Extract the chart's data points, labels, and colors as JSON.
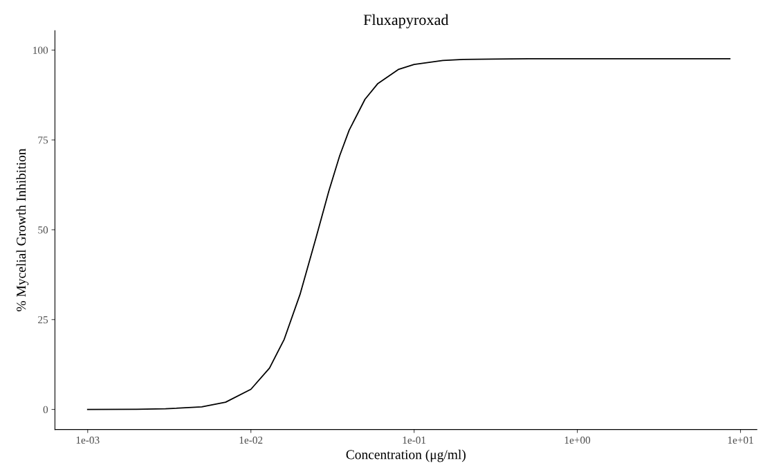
{
  "chart_data": {
    "type": "line",
    "title": "Fluxapyroxad",
    "xlabel": "Concentration (μg/ml)",
    "ylabel": "% Mycelial Growth Inhibition",
    "log": "x",
    "grid": false,
    "legend": false,
    "marker": "none",
    "line_style": "solid",
    "x": [
      0.001,
      0.002,
      0.003,
      0.005,
      0.007,
      0.01,
      0.013,
      0.016,
      0.02,
      0.025,
      0.03,
      0.035,
      0.04,
      0.05,
      0.06,
      0.08,
      0.1,
      0.15,
      0.2,
      0.3,
      0.5,
      1,
      8.6
    ],
    "series": [
      {
        "color": "#000000",
        "values": [
          0,
          0.05,
          0.16,
          0.7,
          2.0,
          5.6,
          11.5,
          19.5,
          32,
          47.6,
          60.7,
          70.6,
          77.7,
          86.3,
          90.7,
          94.6,
          96.0,
          97.1,
          97.4,
          97.5,
          97.6,
          97.6,
          97.6
        ]
      }
    ],
    "xlim": [
      0.00063,
      12.6
    ],
    "ylim": [
      -5.6,
      105.4
    ],
    "xticks": [
      {
        "value": 0.001,
        "label": "1e-03"
      },
      {
        "value": 0.01,
        "label": "1e-02"
      },
      {
        "value": 0.1,
        "label": "1e-01"
      },
      {
        "value": 1,
        "label": "1e+00"
      },
      {
        "value": 10,
        "label": "1e+01"
      }
    ],
    "yticks": [
      0,
      25,
      50,
      75,
      100
    ]
  }
}
